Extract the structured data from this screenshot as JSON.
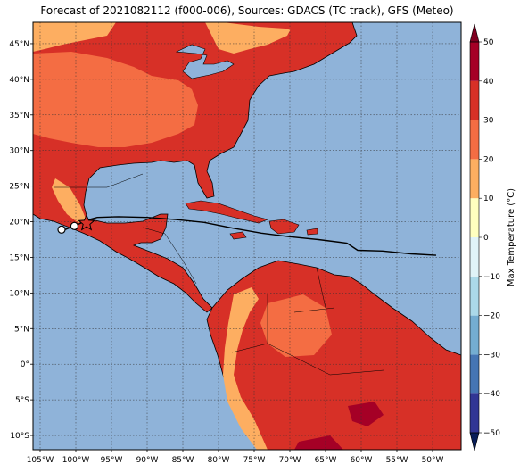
{
  "title": "Forecast of 2021082112 (f000-006), Sources: GDACS (TC track), GFS (Meteo)",
  "colors": {
    "ocean": "#8fb3d9",
    "land_hot": "#d73027",
    "land_warm": "#f46d43",
    "land_mild": "#fdae61",
    "land_very_hot": "#a50026",
    "coast": "#000000",
    "track": "#000000"
  },
  "map": {
    "lon_range": [
      -106,
      -46
    ],
    "lat_range": [
      -12,
      48
    ],
    "lon_ticks": [
      {
        "lon": -105,
        "label": "105°W"
      },
      {
        "lon": -100,
        "label": "100°W"
      },
      {
        "lon": -95,
        "label": "95°W"
      },
      {
        "lon": -90,
        "label": "90°W"
      },
      {
        "lon": -85,
        "label": "85°W"
      },
      {
        "lon": -80,
        "label": "80°W"
      },
      {
        "lon": -75,
        "label": "75°W"
      },
      {
        "lon": -70,
        "label": "70°W"
      },
      {
        "lon": -65,
        "label": "65°W"
      },
      {
        "lon": -60,
        "label": "60°W"
      },
      {
        "lon": -55,
        "label": "55°W"
      },
      {
        "lon": -50,
        "label": "50°W"
      }
    ],
    "lat_ticks": [
      {
        "lat": 45,
        "label": "45°N"
      },
      {
        "lat": 40,
        "label": "40°N"
      },
      {
        "lat": 35,
        "label": "35°N"
      },
      {
        "lat": 30,
        "label": "30°N"
      },
      {
        "lat": 25,
        "label": "25°N"
      },
      {
        "lat": 20,
        "label": "20°N"
      },
      {
        "lat": 15,
        "label": "15°N"
      },
      {
        "lat": 10,
        "label": "10°N"
      },
      {
        "lat": 5,
        "label": "5°N"
      },
      {
        "lat": 0,
        "label": "0°"
      },
      {
        "lat": -5,
        "label": "5°S"
      },
      {
        "lat": -10,
        "label": "10°S"
      }
    ],
    "track": [
      [
        -101.5,
        18.9
      ],
      [
        -100.5,
        19.3
      ],
      [
        -99.5,
        19.7
      ],
      [
        -98.5,
        20.2
      ],
      [
        -97.0,
        20.6
      ],
      [
        -94.0,
        20.7
      ],
      [
        -90.0,
        20.6
      ],
      [
        -86.0,
        20.3
      ],
      [
        -82.0,
        19.9
      ],
      [
        -78.0,
        19.1
      ],
      [
        -74.0,
        18.4
      ],
      [
        -70.0,
        17.9
      ],
      [
        -66.0,
        17.5
      ],
      [
        -62.0,
        17.0
      ],
      [
        -60.5,
        16.0
      ],
      [
        -57.0,
        15.9
      ],
      [
        -53.0,
        15.5
      ],
      [
        -49.5,
        15.3
      ]
    ],
    "track_points": [
      [
        -102.0,
        18.9
      ],
      [
        -100.2,
        19.4
      ]
    ],
    "current_position": [
      -98.5,
      19.8
    ]
  },
  "colorbar": {
    "label": "Max Temperature (°C)",
    "min": -50,
    "max": 50,
    "ticks": [
      50,
      40,
      30,
      20,
      10,
      0,
      -10,
      -20,
      -30,
      -40,
      -50
    ],
    "tick_labels": [
      "50",
      "40",
      "30",
      "20",
      "10",
      "0",
      "−10",
      "−20",
      "−30",
      "−40",
      "−50"
    ],
    "bands": [
      {
        "from": -50,
        "to": -40,
        "color": "#313695"
      },
      {
        "from": -40,
        "to": -30,
        "color": "#4575b4"
      },
      {
        "from": -30,
        "to": -20,
        "color": "#74add1"
      },
      {
        "from": -20,
        "to": -10,
        "color": "#abd9e9"
      },
      {
        "from": -10,
        "to": 0,
        "color": "#e0f3f8"
      },
      {
        "from": 0,
        "to": 10,
        "color": "#ffffbf"
      },
      {
        "from": 10,
        "to": 20,
        "color": "#fdae61"
      },
      {
        "from": 20,
        "to": 30,
        "color": "#f46d43"
      },
      {
        "from": 30,
        "to": 40,
        "color": "#d73027"
      },
      {
        "from": 40,
        "to": 50,
        "color": "#a50026"
      }
    ],
    "under_color": "#081d58",
    "over_color": "#7f0020"
  }
}
